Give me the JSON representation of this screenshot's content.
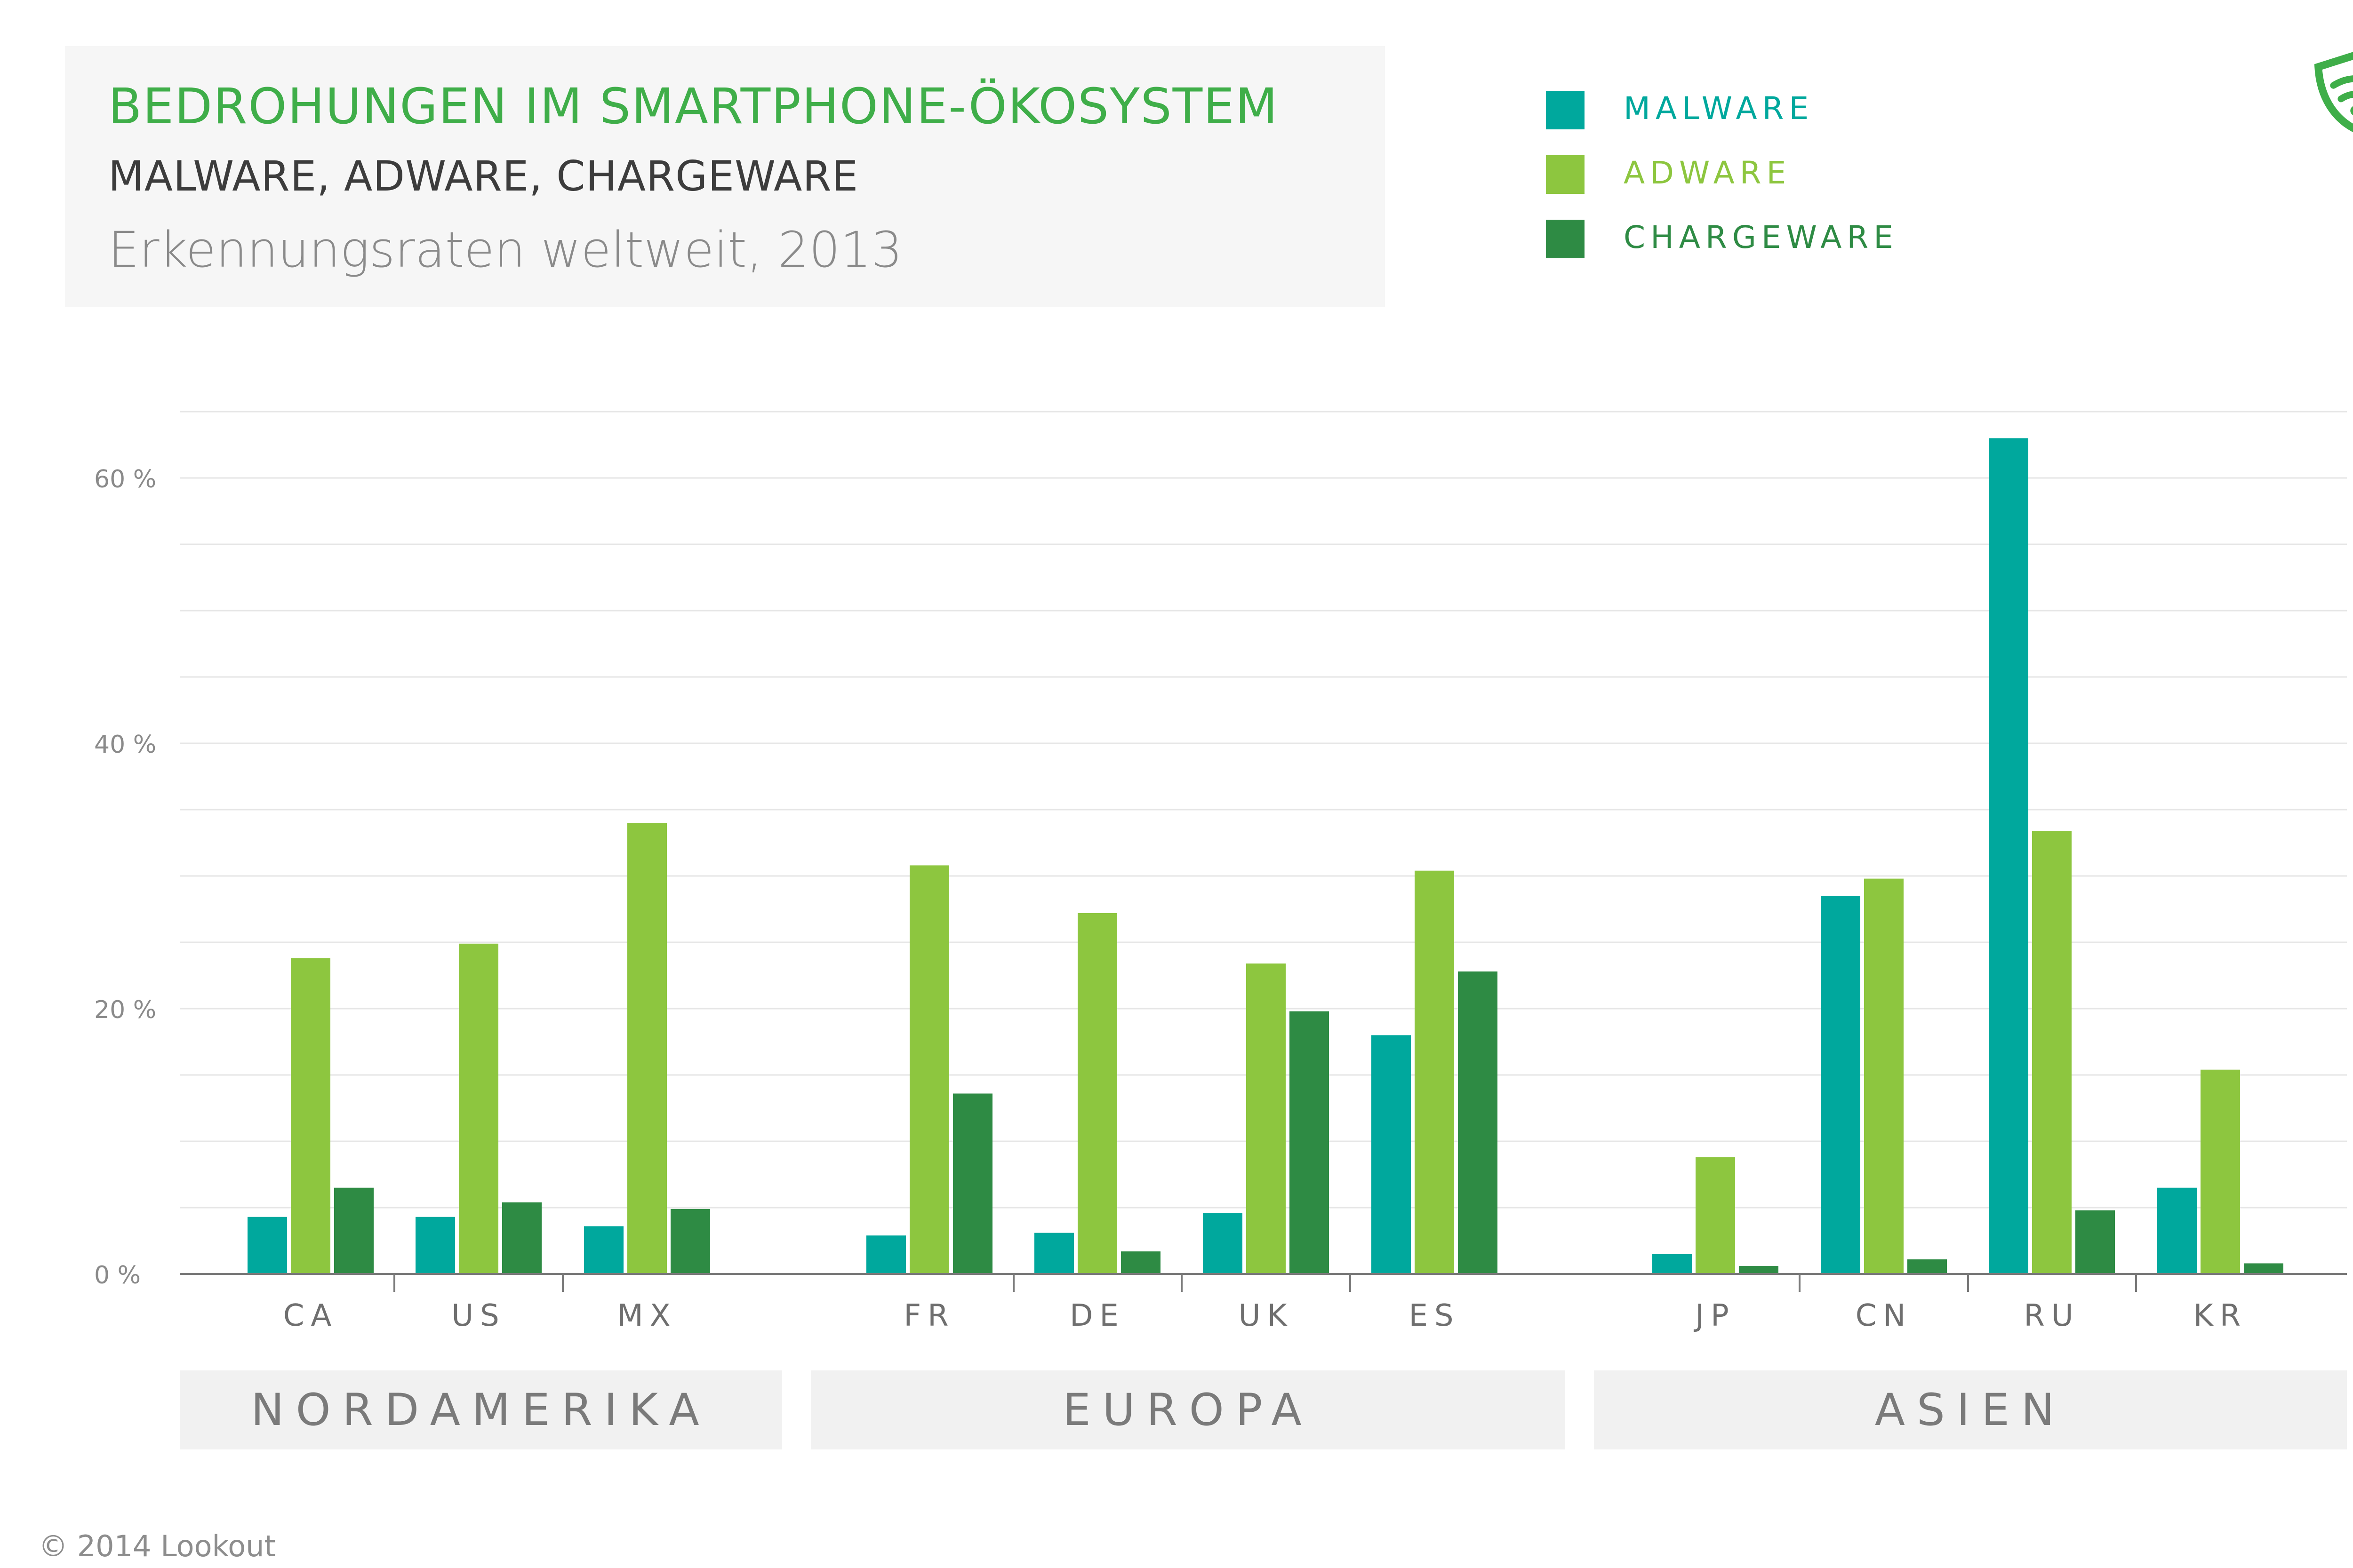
{
  "header": {
    "title": "BEDROHUNGEN IM SMARTPHONE-ÖKOSYSTEM",
    "subtitle": "MALWARE, ADWARE, CHARGEWARE",
    "subtitle2": "Erkennungsraten weltweit, 2013"
  },
  "legend": {
    "items": [
      {
        "label": "MALWARE",
        "color": "#00a89d"
      },
      {
        "label": "ADWARE",
        "color": "#8dc63f"
      },
      {
        "label": "CHARGEWARE",
        "color": "#2e8b44"
      }
    ]
  },
  "regions": [
    {
      "label": "NORDAMERIKA"
    },
    {
      "label": "EUROPA"
    },
    {
      "label": "ASIEN"
    }
  ],
  "footer": {
    "copyright": "© 2014 Lookout"
  },
  "colors": {
    "title": "#3fae49",
    "grid": "#e6e6e6",
    "axis": "#7a7a7a",
    "tick_text": "#8a8a8a",
    "category_text": "#6f6f6f",
    "logo": "#3fae49"
  },
  "chart_data": {
    "type": "bar",
    "title": "BEDROHUNGEN IM SMARTPHONE-ÖKOSYSTEM",
    "xlabel": "",
    "ylabel": "",
    "ylim": [
      0,
      60
    ],
    "yticks": [
      0,
      20,
      40,
      60
    ],
    "ytick_labels": [
      "0 %",
      "20 %",
      "40 %",
      "60 %"
    ],
    "grid": true,
    "legend_position": "top-right",
    "categories": [
      "CA",
      "US",
      "MX",
      "FR",
      "DE",
      "UK",
      "ES",
      "JP",
      "CN",
      "RU",
      "KR"
    ],
    "groups": [
      {
        "name": "NORDAMERIKA",
        "categories": [
          "CA",
          "US",
          "MX"
        ]
      },
      {
        "name": "EUROPA",
        "categories": [
          "FR",
          "DE",
          "UK",
          "ES"
        ]
      },
      {
        "name": "ASIEN",
        "categories": [
          "JP",
          "CN",
          "RU",
          "KR"
        ]
      }
    ],
    "series": [
      {
        "name": "MALWARE",
        "color": "#00a89d",
        "values": [
          4.3,
          4.3,
          3.6,
          2.9,
          3.1,
          4.6,
          18.0,
          1.5,
          28.5,
          63.0,
          6.5
        ]
      },
      {
        "name": "ADWARE",
        "color": "#8dc63f",
        "values": [
          23.8,
          24.9,
          34.0,
          30.8,
          27.2,
          23.4,
          30.4,
          8.8,
          29.8,
          33.4,
          15.4
        ]
      },
      {
        "name": "CHARGEWARE",
        "color": "#2e8b44",
        "values": [
          6.5,
          5.4,
          4.9,
          13.6,
          1.7,
          19.8,
          22.8,
          0.6,
          1.1,
          4.8,
          0.8
        ]
      }
    ]
  }
}
